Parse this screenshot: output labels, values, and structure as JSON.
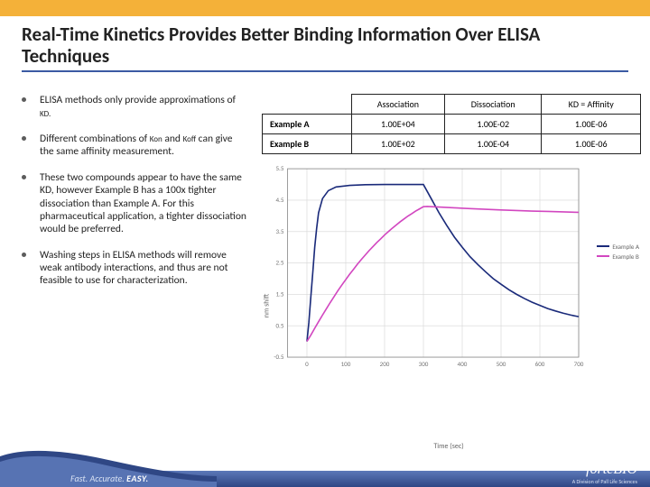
{
  "title": "Real-Time Kinetics Provides Better Binding Information Over ELISA Techniques",
  "bullets": [
    {
      "pre": "ELISA methods only provide approximations of ",
      "sub": "KD.",
      "post": ""
    },
    {
      "pre": "Different combinations of ",
      "sub1": "Kon",
      "mid": " and ",
      "sub2": "Koff",
      "post": " can give the same affinity measurement."
    },
    {
      "text": "These two compounds appear to have the same KD, however Example B has a 100x tighter dissociation than Example A.  For this pharmaceutical application, a tighter dissociation would be preferred."
    },
    {
      "text": "Washing steps in ELISA methods will remove weak antibody interactions, and thus are not feasible to use for characterization."
    }
  ],
  "table": {
    "headers": [
      "",
      "Association",
      "Dissociation",
      "KD = Affinity"
    ],
    "rows": [
      {
        "label": "Example A",
        "cells": [
          "1.00E+04",
          "1.00E-02",
          "1.00E-06"
        ]
      },
      {
        "label": "Example B",
        "cells": [
          "1.00E+02",
          "1.00E-04",
          "1.00E-06"
        ]
      }
    ]
  },
  "chart": {
    "type": "line",
    "xlabel": "Time (sec)",
    "ylabel": "nm shift",
    "xlim": [
      -50,
      700
    ],
    "ylim": [
      -0.5,
      5.5
    ],
    "xticks": [
      0,
      100,
      200,
      300,
      400,
      500,
      600,
      700
    ],
    "yticks": [
      -0.5,
      0.5,
      1.5,
      2.5,
      3.5,
      4.5,
      5.5
    ],
    "grid_color": "#d6d6d6",
    "axis_color": "#888",
    "background": "#ffffff",
    "tick_fontsize": 7,
    "label_fontsize": 8,
    "line_width": 1.6,
    "series": [
      {
        "name": "Example A",
        "color": "#1a2a7a",
        "points": [
          [
            0,
            0.0
          ],
          [
            5,
            0.6
          ],
          [
            10,
            1.4
          ],
          [
            15,
            2.2
          ],
          [
            20,
            3.0
          ],
          [
            25,
            3.6
          ],
          [
            30,
            4.1
          ],
          [
            40,
            4.55
          ],
          [
            55,
            4.8
          ],
          [
            75,
            4.92
          ],
          [
            110,
            4.97
          ],
          [
            150,
            4.99
          ],
          [
            200,
            5.0
          ],
          [
            250,
            5.0
          ],
          [
            290,
            5.0
          ],
          [
            300,
            5.0
          ],
          [
            320,
            4.55
          ],
          [
            340,
            4.1
          ],
          [
            360,
            3.7
          ],
          [
            380,
            3.32
          ],
          [
            400,
            3.0
          ],
          [
            420,
            2.7
          ],
          [
            440,
            2.45
          ],
          [
            460,
            2.22
          ],
          [
            480,
            2.0
          ],
          [
            500,
            1.82
          ],
          [
            520,
            1.65
          ],
          [
            540,
            1.5
          ],
          [
            560,
            1.37
          ],
          [
            580,
            1.25
          ],
          [
            600,
            1.15
          ],
          [
            620,
            1.05
          ],
          [
            640,
            0.97
          ],
          [
            660,
            0.9
          ],
          [
            680,
            0.84
          ],
          [
            700,
            0.79
          ]
        ]
      },
      {
        "name": "Example B",
        "color": "#d247c0",
        "points": [
          [
            0,
            0.0
          ],
          [
            10,
            0.2
          ],
          [
            20,
            0.42
          ],
          [
            30,
            0.63
          ],
          [
            40,
            0.84
          ],
          [
            50,
            1.04
          ],
          [
            60,
            1.24
          ],
          [
            70,
            1.43
          ],
          [
            80,
            1.62
          ],
          [
            90,
            1.8
          ],
          [
            100,
            1.97
          ],
          [
            110,
            2.14
          ],
          [
            120,
            2.3
          ],
          [
            130,
            2.46
          ],
          [
            140,
            2.61
          ],
          [
            150,
            2.75
          ],
          [
            160,
            2.89
          ],
          [
            170,
            3.02
          ],
          [
            180,
            3.15
          ],
          [
            190,
            3.27
          ],
          [
            200,
            3.39
          ],
          [
            210,
            3.5
          ],
          [
            220,
            3.61
          ],
          [
            230,
            3.71
          ],
          [
            240,
            3.81
          ],
          [
            250,
            3.9
          ],
          [
            260,
            3.99
          ],
          [
            270,
            4.07
          ],
          [
            280,
            4.15
          ],
          [
            290,
            4.22
          ],
          [
            300,
            4.29
          ],
          [
            310,
            4.3
          ],
          [
            340,
            4.28
          ],
          [
            380,
            4.255
          ],
          [
            420,
            4.23
          ],
          [
            460,
            4.21
          ],
          [
            500,
            4.19
          ],
          [
            540,
            4.17
          ],
          [
            580,
            4.15
          ],
          [
            620,
            4.14
          ],
          [
            660,
            4.125
          ],
          [
            700,
            4.11
          ]
        ]
      }
    ],
    "legend_labels": [
      "Example A",
      "Example B"
    ]
  },
  "footer": {
    "tagline_parts": [
      "Fast. ",
      "Accurate. ",
      "EASY."
    ],
    "brand": "fortéBIO",
    "brand_sub": "A Division of Pall Life Sciences"
  },
  "colors": {
    "orange": "#f4b139",
    "rule": "#3b5aa3",
    "footer_top": "#5c78b8",
    "footer_bot": "#2f4785"
  }
}
